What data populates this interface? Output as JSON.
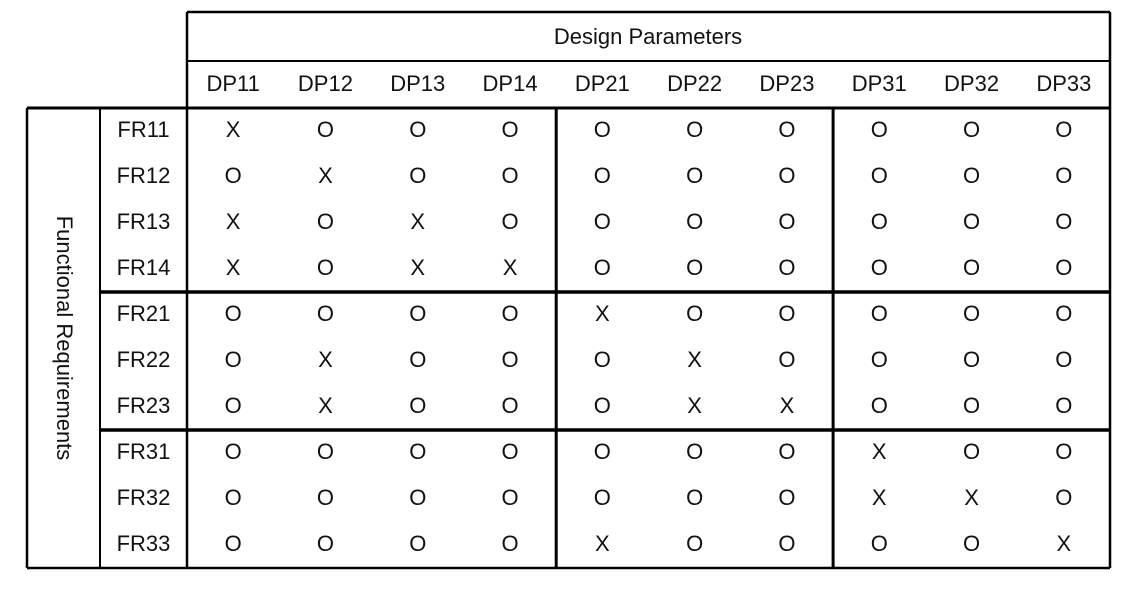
{
  "header": {
    "title": "Design Parameters",
    "columns": [
      "DP11",
      "DP12",
      "DP13",
      "DP14",
      "DP21",
      "DP22",
      "DP23",
      "DP31",
      "DP32",
      "DP33"
    ]
  },
  "side_label": "Functional Requirements",
  "rows": [
    {
      "label": "FR11",
      "cells": [
        "X",
        "O",
        "O",
        "O",
        "O",
        "O",
        "O",
        "O",
        "O",
        "O"
      ]
    },
    {
      "label": "FR12",
      "cells": [
        "O",
        "X",
        "O",
        "O",
        "O",
        "O",
        "O",
        "O",
        "O",
        "O"
      ]
    },
    {
      "label": "FR13",
      "cells": [
        "X",
        "O",
        "X",
        "O",
        "O",
        "O",
        "O",
        "O",
        "O",
        "O"
      ]
    },
    {
      "label": "FR14",
      "cells": [
        "X",
        "O",
        "X",
        "X",
        "O",
        "O",
        "O",
        "O",
        "O",
        "O"
      ]
    },
    {
      "label": "FR21",
      "cells": [
        "O",
        "O",
        "O",
        "O",
        "X",
        "O",
        "O",
        "O",
        "O",
        "O"
      ]
    },
    {
      "label": "FR22",
      "cells": [
        "O",
        "X",
        "O",
        "O",
        "O",
        "X",
        "O",
        "O",
        "O",
        "O"
      ]
    },
    {
      "label": "FR23",
      "cells": [
        "O",
        "X",
        "O",
        "O",
        "O",
        "X",
        "X",
        "O",
        "O",
        "O"
      ]
    },
    {
      "label": "FR31",
      "cells": [
        "O",
        "O",
        "O",
        "O",
        "O",
        "O",
        "O",
        "X",
        "O",
        "O"
      ]
    },
    {
      "label": "FR32",
      "cells": [
        "O",
        "O",
        "O",
        "O",
        "O",
        "O",
        "O",
        "X",
        "X",
        "O"
      ]
    },
    {
      "label": "FR33",
      "cells": [
        "O",
        "O",
        "O",
        "O",
        "X",
        "O",
        "O",
        "O",
        "O",
        "X"
      ]
    }
  ]
}
